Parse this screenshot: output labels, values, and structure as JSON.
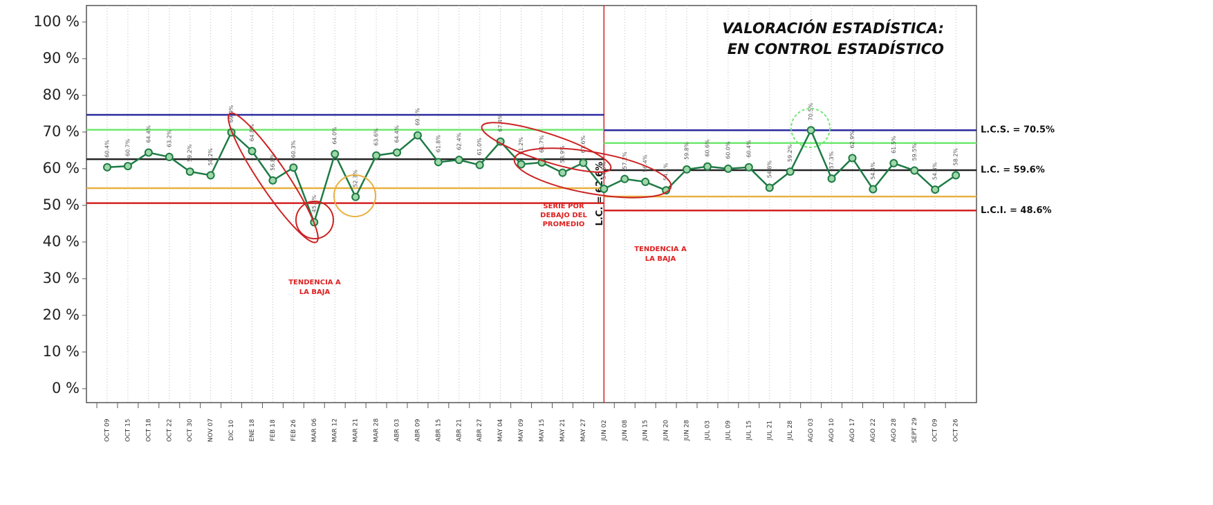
{
  "chart_data": {
    "type": "line",
    "categories": [
      "OCT 09",
      "OCT 15",
      "OCT 18",
      "OCT 22",
      "OCT 30",
      "NOV 07",
      "DIC 10",
      "ENE 18",
      "FEB 18",
      "FEB 26",
      "MAR 06",
      "MAR 12",
      "MAR 21",
      "MAR 28",
      "ABR 03",
      "ABR 09",
      "ABR 15",
      "ABR 21",
      "ABR 27",
      "MAY 04",
      "MAY 09",
      "MAY 15",
      "MAY 21",
      "MAY 27",
      "JUN 02",
      "JUN 08",
      "JUN 15",
      "JUN 20",
      "JUN 28",
      "JUL 03",
      "JUL 09",
      "JUL 15",
      "JUL 21",
      "JUL 28",
      "AGO 03",
      "AGO 10",
      "AGO 17",
      "AGO 22",
      "AGO 28",
      "SEPT 29",
      "OCT 09",
      "OCT 26"
    ],
    "series": [
      {
        "color": "#1e7a45",
        "values": [
          60.4,
          60.7,
          64.4,
          63.2,
          59.2,
          58.2,
          69.9,
          64.8,
          56.8,
          60.3,
          45.4,
          64.0,
          52.3,
          63.6,
          64.4,
          69.1,
          61.8,
          62.4,
          61.0,
          67.4,
          61.2,
          61.7,
          58.9,
          61.6,
          54.5,
          57.2,
          56.4,
          54.1,
          59.8,
          60.6,
          60.0,
          60.4,
          54.8,
          59.2,
          70.5,
          57.3,
          62.9,
          54.4,
          61.5,
          59.5,
          54.3,
          58.2
        ],
        "value_labels": [
          "60.4%",
          "60.7%",
          "64.4%",
          "63.2%",
          "59.2%",
          "58.2%",
          "69.9%",
          "64.8%",
          "56.8%",
          "60.3%",
          "45.4%",
          "64.0%",
          "52.3%",
          "63.6%",
          "64.4%",
          "69.1%",
          "61.8%",
          "62.4%",
          "61.0%",
          "67.4%",
          "61.2%",
          "61.7%",
          "58.9%",
          "61.6%",
          "54.5%",
          "57.2%",
          "56.4%",
          "54.1%",
          "59.8%",
          "60.6%",
          "60.0%",
          "60.4%",
          "54.8%",
          "59.2%",
          "70.5%",
          "57.3%",
          "62.9%",
          "54.4%",
          "61.5%",
          "59.5%",
          "54.3%",
          "58.2%"
        ]
      }
    ],
    "phase_break": "JUN 02",
    "control_limits": [
      [
        {
          "value": 74.7,
          "color": "#2a2aa0"
        },
        {
          "value": 70.6,
          "color": "#6ee86e"
        },
        {
          "value": 62.6,
          "color": "#222222",
          "label": "L.C. = 62.6%"
        },
        {
          "value": 54.7,
          "color": "#e8b040"
        },
        {
          "value": 50.6,
          "color": "#d42020"
        }
      ],
      [
        {
          "value": 70.5,
          "color": "#2a2aa0",
          "label": "L.C.S. = 70.5%"
        },
        {
          "value": 67.0,
          "color": "#6ee86e"
        },
        {
          "value": 59.6,
          "color": "#222222",
          "label": "L.C. = 59.6%"
        },
        {
          "value": 52.4,
          "color": "#e8b040"
        },
        {
          "value": 48.6,
          "color": "#d42020",
          "label": "L.C.I. = 48.6%"
        }
      ]
    ],
    "ylim": [
      -3.8,
      104.5
    ],
    "yticks": [
      {
        "value": 0,
        "label": "0 %"
      },
      {
        "value": 10,
        "label": "10 %"
      },
      {
        "value": 20,
        "label": "20 %"
      },
      {
        "value": 30,
        "label": "30 %"
      },
      {
        "value": 40,
        "label": "40 %"
      },
      {
        "value": 50,
        "label": "50 %"
      },
      {
        "value": 60,
        "label": "60 %"
      },
      {
        "value": 70,
        "label": "70 %"
      },
      {
        "value": 80,
        "label": "80 %"
      },
      {
        "value": 90,
        "label": "90 %"
      },
      {
        "value": 100,
        "label": "100 %"
      }
    ],
    "grid": true,
    "annotations": {
      "assessment": [
        "VALORACIÓN ESTADÍSTICA:",
        "EN CONTROL ESTADÍSTICO"
      ],
      "trend_1": [
        "TENDENCIA A",
        "LA BAJA"
      ],
      "series_below": [
        "SERIE POR",
        "DEBAJO DEL",
        "PROMEDIO"
      ],
      "trend_2": [
        "TENDENCIA A",
        "LA BAJA"
      ]
    }
  }
}
